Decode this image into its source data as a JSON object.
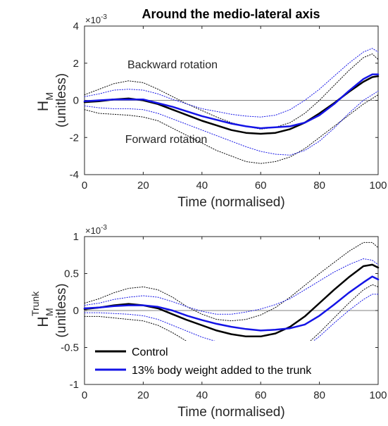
{
  "figure": {
    "title": "Around the medio-lateral axis"
  },
  "colors": {
    "control": "#000000",
    "weighted": "#1414e6",
    "zero_line": "#808080"
  },
  "chart_data": [
    {
      "type": "line",
      "title": "Around the medio-lateral axis",
      "xlabel": "Time (normalised)",
      "ylabel": {
        "symbol": "H",
        "sub": "M",
        "sup": "",
        "units": "(unitless)"
      },
      "exponent": "×10",
      "exponent_power": "-3",
      "xlim": [
        0,
        100
      ],
      "ylim": [
        -4,
        4
      ],
      "xticks": [
        "0",
        "20",
        "40",
        "60",
        "80",
        "100"
      ],
      "yticks": [
        "-4",
        "-2",
        "0",
        "2",
        "4"
      ],
      "annotations": [
        "Backward rotation",
        "Forward rotation"
      ],
      "x": [
        0,
        5,
        10,
        15,
        20,
        25,
        30,
        35,
        40,
        45,
        50,
        55,
        60,
        65,
        70,
        75,
        80,
        85,
        90,
        95,
        98,
        100
      ],
      "series": [
        {
          "name": "Control",
          "color": "#000000",
          "style": "solid",
          "width": 2.5,
          "values": [
            -0.1,
            -0.05,
            0.05,
            0.1,
            0.0,
            -0.2,
            -0.5,
            -0.8,
            -1.1,
            -1.35,
            -1.6,
            -1.75,
            -1.8,
            -1.75,
            -1.55,
            -1.2,
            -0.7,
            -0.15,
            0.45,
            1.0,
            1.25,
            1.3
          ]
        },
        {
          "name": "13% body weight added to the trunk",
          "color": "#1414e6",
          "style": "solid",
          "width": 2.5,
          "values": [
            -0.05,
            0.0,
            0.05,
            0.05,
            0.05,
            -0.15,
            -0.35,
            -0.6,
            -0.85,
            -1.05,
            -1.25,
            -1.4,
            -1.5,
            -1.45,
            -1.4,
            -1.2,
            -0.8,
            -0.2,
            0.5,
            1.15,
            1.4,
            1.4
          ]
        },
        {
          "name": "",
          "color": "#000000",
          "style": "dotted",
          "width": 1,
          "values": [
            0.3,
            0.6,
            0.9,
            1.05,
            0.95,
            0.6,
            0.2,
            -0.2,
            -0.55,
            -0.9,
            -1.2,
            -1.4,
            -1.55,
            -1.45,
            -1.2,
            -0.7,
            0.0,
            0.8,
            1.6,
            2.3,
            2.5,
            2.2
          ]
        },
        {
          "name": "",
          "color": "#000000",
          "style": "dotted",
          "width": 1,
          "values": [
            -0.5,
            -0.7,
            -0.75,
            -0.8,
            -0.9,
            -1.1,
            -1.5,
            -1.9,
            -2.3,
            -2.7,
            -3.0,
            -3.3,
            -3.4,
            -3.3,
            -3.05,
            -2.6,
            -2.0,
            -1.4,
            -0.8,
            -0.2,
            0.1,
            0.3
          ]
        },
        {
          "name": "",
          "color": "#1414e6",
          "style": "dotted",
          "width": 1,
          "values": [
            0.2,
            0.35,
            0.55,
            0.6,
            0.55,
            0.35,
            0.05,
            -0.2,
            -0.45,
            -0.6,
            -0.75,
            -0.85,
            -0.9,
            -0.8,
            -0.5,
            0.0,
            0.6,
            1.3,
            2.0,
            2.6,
            2.8,
            2.6
          ]
        },
        {
          "name": "",
          "color": "#1414e6",
          "style": "dotted",
          "width": 1,
          "values": [
            -0.3,
            -0.4,
            -0.45,
            -0.45,
            -0.5,
            -0.7,
            -1.0,
            -1.3,
            -1.6,
            -1.9,
            -2.2,
            -2.5,
            -2.75,
            -2.9,
            -2.95,
            -2.7,
            -2.2,
            -1.5,
            -0.7,
            0.0,
            0.3,
            0.5
          ]
        }
      ]
    },
    {
      "type": "line",
      "xlabel": "Time (normalised)",
      "ylabel": {
        "symbol": "H",
        "sub": "M",
        "sup": "Trunk",
        "units": "(unitless)"
      },
      "exponent": "×10",
      "exponent_power": "-3",
      "xlim": [
        0,
        100
      ],
      "ylim": [
        -1,
        1
      ],
      "xticks": [
        "0",
        "20",
        "40",
        "60",
        "80",
        "100"
      ],
      "yticks": [
        "-1",
        "-0.5",
        "0",
        "0.5",
        "1"
      ],
      "legend": {
        "position": "bottom-left",
        "entries": [
          "Control",
          "13% body weight added to the trunk"
        ]
      },
      "x": [
        0,
        5,
        10,
        15,
        20,
        25,
        30,
        35,
        40,
        45,
        50,
        55,
        60,
        65,
        70,
        75,
        80,
        85,
        90,
        95,
        98,
        100
      ],
      "series": [
        {
          "name": "Control",
          "color": "#000000",
          "style": "solid",
          "width": 2.5,
          "values": [
            0.02,
            0.04,
            0.07,
            0.09,
            0.07,
            0.03,
            -0.05,
            -0.13,
            -0.2,
            -0.27,
            -0.32,
            -0.35,
            -0.35,
            -0.31,
            -0.22,
            -0.08,
            0.1,
            0.28,
            0.45,
            0.6,
            0.62,
            0.58
          ]
        },
        {
          "name": "13% body weight added to the trunk",
          "color": "#1414e6",
          "style": "solid",
          "width": 2.5,
          "values": [
            0.03,
            0.04,
            0.06,
            0.07,
            0.07,
            0.05,
            0.0,
            -0.07,
            -0.13,
            -0.18,
            -0.22,
            -0.25,
            -0.27,
            -0.26,
            -0.24,
            -0.19,
            -0.07,
            0.08,
            0.24,
            0.38,
            0.46,
            0.42
          ]
        },
        {
          "name": "",
          "color": "#000000",
          "style": "dotted",
          "width": 1,
          "values": [
            0.1,
            0.16,
            0.24,
            0.3,
            0.32,
            0.28,
            0.18,
            0.05,
            -0.05,
            -0.12,
            -0.14,
            -0.12,
            -0.06,
            0.04,
            0.18,
            0.34,
            0.5,
            0.65,
            0.8,
            0.92,
            0.92,
            0.85
          ]
        },
        {
          "name": "",
          "color": "#000000",
          "style": "dotted",
          "width": 1,
          "values": [
            -0.08,
            -0.08,
            -0.1,
            -0.12,
            -0.14,
            -0.2,
            -0.3,
            -0.42,
            -0.52,
            -0.6,
            -0.66,
            -0.7,
            -0.72,
            -0.7,
            -0.62,
            -0.48,
            -0.3,
            -0.1,
            0.1,
            0.28,
            0.35,
            0.32
          ]
        },
        {
          "name": "",
          "color": "#1414e6",
          "style": "dotted",
          "width": 1,
          "values": [
            0.07,
            0.1,
            0.15,
            0.18,
            0.2,
            0.18,
            0.12,
            0.05,
            -0.01,
            -0.05,
            -0.05,
            -0.02,
            0.02,
            0.08,
            0.16,
            0.28,
            0.4,
            0.52,
            0.62,
            0.7,
            0.68,
            0.62
          ]
        },
        {
          "name": "",
          "color": "#1414e6",
          "style": "dotted",
          "width": 1,
          "values": [
            -0.03,
            -0.03,
            -0.04,
            -0.05,
            -0.07,
            -0.12,
            -0.2,
            -0.28,
            -0.36,
            -0.42,
            -0.48,
            -0.53,
            -0.56,
            -0.58,
            -0.58,
            -0.5,
            -0.35,
            -0.17,
            0.0,
            0.15,
            0.22,
            0.22
          ]
        }
      ]
    }
  ]
}
